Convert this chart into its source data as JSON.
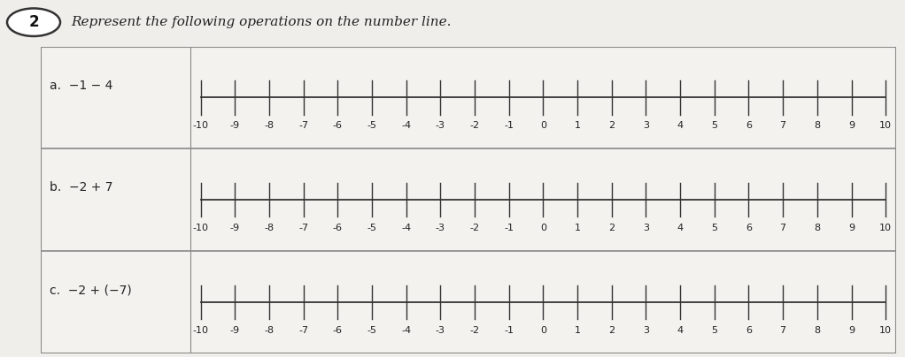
{
  "title": "Represent the following operations on the number line.",
  "problem_number": "2",
  "rows": [
    {
      "label": "a.  −1 − 4"
    },
    {
      "label": "b.  −2 + 7"
    },
    {
      "label": "c.  −2 + (−7)"
    }
  ],
  "x_min": -10,
  "x_max": 10,
  "tick_values": [
    -10,
    -9,
    -8,
    -7,
    -6,
    -5,
    -4,
    -3,
    -2,
    -1,
    0,
    1,
    2,
    3,
    4,
    5,
    6,
    7,
    8,
    9,
    10
  ],
  "paper_color": "#f0eeea",
  "box_bg": "#f4f2ee",
  "line_color": "#333333",
  "text_color": "#222222",
  "border_color": "#888888",
  "title_fontsize": 11,
  "label_fontsize": 10,
  "tick_label_fontsize": 8
}
